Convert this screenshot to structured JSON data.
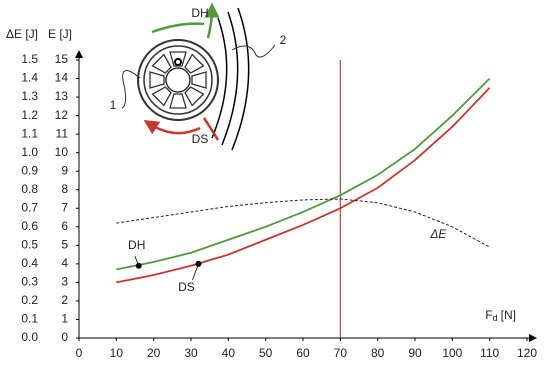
{
  "chart_data": {
    "type": "line",
    "y_label": "E [J]",
    "y2_label": "ΔE [J]",
    "x_label": {
      "symbol": "F",
      "subscript": "d",
      "unit": "[N]"
    },
    "x": [
      10,
      20,
      30,
      40,
      50,
      60,
      70,
      80,
      90,
      100,
      110
    ],
    "series": [
      {
        "name": "DH",
        "color": "#4f9a3c",
        "values": [
          3.7,
          4.1,
          4.6,
          5.3,
          6.0,
          6.8,
          7.7,
          8.8,
          10.2,
          12.0,
          14.0
        ]
      },
      {
        "name": "DS",
        "color": "#c8372d",
        "values": [
          3.0,
          3.4,
          3.9,
          4.5,
          5.3,
          6.1,
          7.0,
          8.1,
          9.6,
          11.4,
          13.5
        ]
      },
      {
        "name": "ΔE",
        "color": "#222222",
        "dashed": true,
        "axis": "y2",
        "values": [
          0.62,
          0.65,
          0.68,
          0.71,
          0.73,
          0.745,
          0.75,
          0.73,
          0.68,
          0.6,
          0.49
        ]
      }
    ],
    "points": [
      {
        "label": "DH",
        "x": 16,
        "y": 3.9
      },
      {
        "label": "DS",
        "x": 32,
        "y": 4.0
      }
    ],
    "vline": {
      "x": 70,
      "color": "#b8403a"
    },
    "xlim": [
      0,
      120
    ],
    "xticks": [
      0,
      10,
      20,
      30,
      40,
      50,
      60,
      70,
      80,
      90,
      100,
      110,
      120
    ],
    "ylim": [
      0,
      15
    ],
    "yticks": [
      0,
      1,
      2,
      3,
      4,
      5,
      6,
      7,
      8,
      9,
      10,
      11,
      12,
      13,
      14,
      15
    ],
    "y2lim": [
      0,
      1.5
    ],
    "y2ticks": [
      {
        "value": 0,
        "label": "0.0"
      },
      0.1,
      0.2,
      0.3,
      0.4,
      0.5,
      0.6,
      0.7,
      0.8,
      0.9,
      {
        "value": 1,
        "label": "1.0"
      },
      1.1,
      1.2,
      1.3,
      1.4,
      1.5
    ],
    "inset": {
      "labels": [
        "DH",
        "DS",
        "1",
        "2"
      ]
    }
  }
}
